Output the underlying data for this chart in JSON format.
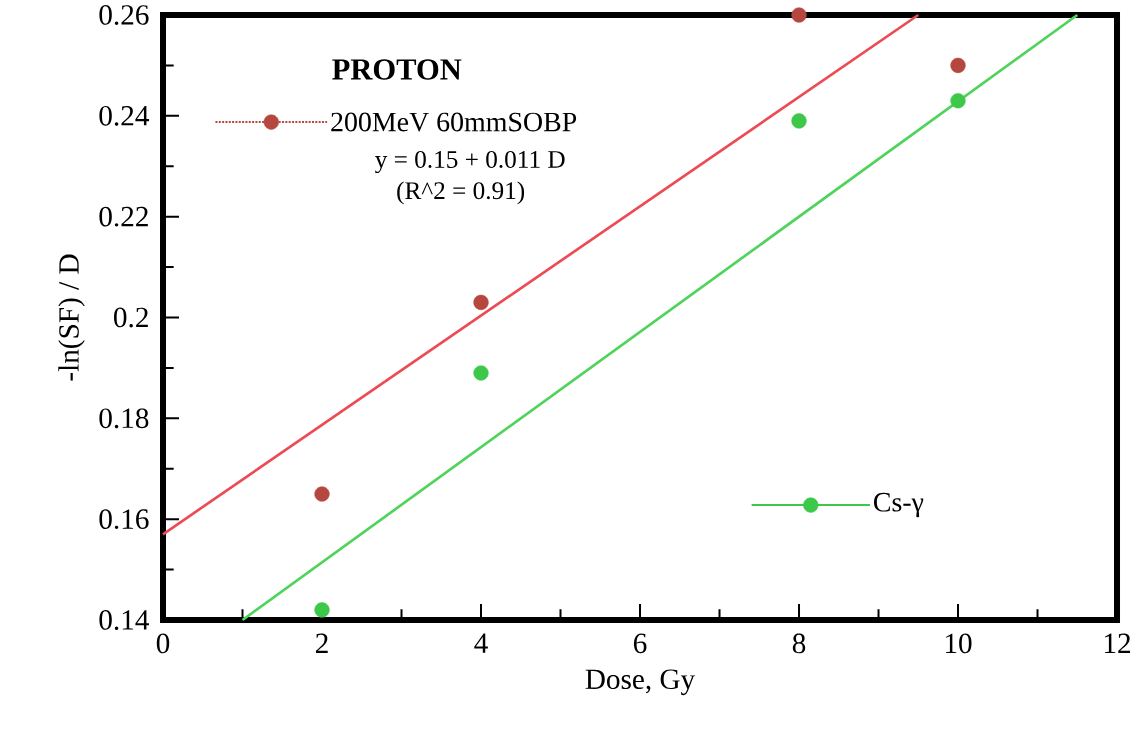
{
  "chart_data": {
    "type": "scatter",
    "xlabel": "Dose, Gy",
    "ylabel": "-ln(SF) / D",
    "xlim": [
      0,
      12
    ],
    "ylim": [
      0.14,
      0.26
    ],
    "xticks": [
      0,
      2,
      4,
      6,
      8,
      10,
      12
    ],
    "yticks": [
      0.14,
      0.16,
      0.18,
      0.2,
      0.22,
      0.24,
      0.26
    ],
    "grid": false,
    "marker": "circle",
    "legend": "top left",
    "annotations": [
      "PROTON",
      "y = 0.15 + 0.011 D",
      "(R^2 = 0.91)"
    ],
    "series": [
      {
        "name": "200MeV  60mmSOBP",
        "color": "#b5473f",
        "x": [
          2,
          4,
          8,
          10
        ],
        "values": [
          0.165,
          0.203,
          0.26,
          0.25
        ]
      },
      {
        "name": "Cs-γ",
        "color": "#3dc84a",
        "x": [
          2,
          4,
          8,
          10
        ],
        "values": [
          0.142,
          0.189,
          0.239,
          0.243
        ]
      },
      {
        "type": "line",
        "marker": "none",
        "color": "#ec4a55",
        "x": [
          0,
          9.5
        ],
        "values": [
          0.157,
          0.26
        ]
      },
      {
        "type": "line",
        "marker": "none",
        "color": "#4fd35a",
        "x": [
          1,
          11.5
        ],
        "values": [
          0.14,
          0.26
        ]
      }
    ]
  }
}
